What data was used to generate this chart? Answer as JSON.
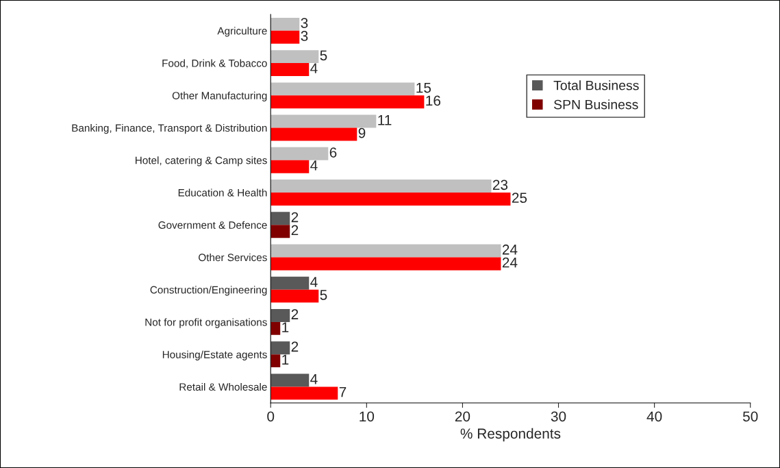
{
  "chart_data": {
    "type": "bar",
    "orientation": "horizontal",
    "xlabel": "% Respondents",
    "categories": [
      "Agriculture",
      "Food, Drink & Tobacco",
      "Other Manufacturing",
      "Banking, Finance, Transport & Distribution",
      "Hotel, catering & Camp sites",
      "Education & Health",
      "Government & Defence",
      "Other Services",
      "Construction/Engineering",
      "Not for profit organisations",
      "Housing/Estate agents",
      "Retail & Wholesale"
    ],
    "series": [
      {
        "name": "Total Business",
        "color": "#595959",
        "colors": [
          "#c0c0c0",
          "#c0c0c0",
          "#c0c0c0",
          "#c0c0c0",
          "#c0c0c0",
          "#c0c0c0",
          "#595959",
          "#c0c0c0",
          "#595959",
          "#595959",
          "#595959",
          "#595959"
        ],
        "values": [
          3,
          5,
          15,
          11,
          6,
          23,
          2,
          24,
          4,
          2,
          2,
          4
        ]
      },
      {
        "name": "SPN Business",
        "color": "#800000",
        "colors": [
          "#ff0000",
          "#ff0000",
          "#ff0000",
          "#ff0000",
          "#ff0000",
          "#ff0000",
          "#800000",
          "#ff0000",
          "#ff0000",
          "#800000",
          "#800000",
          "#ff0000"
        ],
        "values": [
          3,
          4,
          16,
          9,
          4,
          25,
          2,
          24,
          5,
          1,
          1,
          7
        ]
      }
    ],
    "xlim": [
      0,
      50
    ],
    "xticks": [
      0,
      10,
      20,
      30,
      40,
      50
    ],
    "data_labels": true,
    "grid": false,
    "legend": "right"
  }
}
